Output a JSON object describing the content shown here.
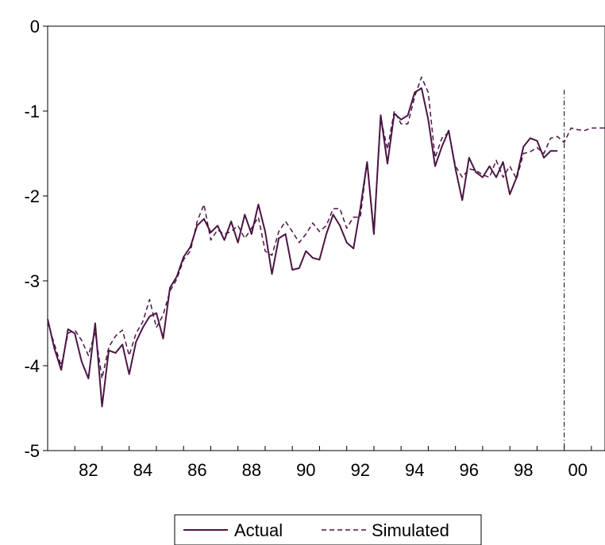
{
  "chart_data": {
    "type": "line",
    "title": "",
    "xlabel": "",
    "ylabel": "",
    "xlim": [
      1981.0,
      2001.5
    ],
    "ylim": [
      -5,
      0
    ],
    "x_ticks": [
      1982,
      1984,
      1986,
      1988,
      1990,
      1992,
      1994,
      1996,
      1998,
      2000
    ],
    "x_tick_labels": [
      "82",
      "84",
      "86",
      "88",
      "90",
      "92",
      "94",
      "96",
      "98",
      "00"
    ],
    "y_ticks": [
      0,
      -1,
      -2,
      -3,
      -4,
      -5
    ],
    "y_tick_labels": [
      "0",
      "-1",
      "-2",
      "-3",
      "-4",
      "-5"
    ],
    "grid": false,
    "legend_position": "bottom-center",
    "reference_line": {
      "x": 2000,
      "style": "dash-dot",
      "color": "#000000"
    },
    "x": [
      "1981Q1",
      "1981Q2",
      "1981Q3",
      "1981Q4",
      "1982Q1",
      "1982Q2",
      "1982Q3",
      "1982Q4",
      "1983Q1",
      "1983Q2",
      "1983Q3",
      "1983Q4",
      "1984Q1",
      "1984Q2",
      "1984Q3",
      "1984Q4",
      "1985Q1",
      "1985Q2",
      "1985Q3",
      "1985Q4",
      "1986Q1",
      "1986Q2",
      "1986Q3",
      "1986Q4",
      "1987Q1",
      "1987Q2",
      "1987Q3",
      "1987Q4",
      "1988Q1",
      "1988Q2",
      "1988Q3",
      "1988Q4",
      "1989Q1",
      "1989Q2",
      "1989Q3",
      "1989Q4",
      "1990Q1",
      "1990Q2",
      "1990Q3",
      "1990Q4",
      "1991Q1",
      "1991Q2",
      "1991Q3",
      "1991Q4",
      "1992Q1",
      "1992Q2",
      "1992Q3",
      "1992Q4",
      "1993Q1",
      "1993Q2",
      "1993Q3",
      "1993Q4",
      "1994Q1",
      "1994Q2",
      "1994Q3",
      "1994Q4",
      "1995Q1",
      "1995Q2",
      "1995Q3",
      "1995Q4",
      "1996Q1",
      "1996Q2",
      "1996Q3",
      "1996Q4",
      "1997Q1",
      "1997Q2",
      "1997Q3",
      "1997Q4",
      "1998Q1",
      "1998Q2",
      "1998Q3",
      "1998Q4",
      "1999Q1",
      "1999Q2",
      "1999Q3",
      "1999Q4",
      "2000Q1",
      "2000Q2",
      "2000Q3",
      "2000Q4",
      "2001Q1",
      "2001Q2",
      "2001Q3",
      "2001Q4"
    ],
    "series": [
      {
        "name": "Actual",
        "color": "#4b1545",
        "style": "solid",
        "values": [
          -3.45,
          -3.8,
          -4.05,
          -3.57,
          -3.62,
          -3.95,
          -4.15,
          -3.5,
          -4.48,
          -3.82,
          -3.85,
          -3.75,
          -4.1,
          -3.72,
          -3.55,
          -3.42,
          -3.38,
          -3.68,
          -3.08,
          -2.95,
          -2.72,
          -2.6,
          -2.35,
          -2.27,
          -2.43,
          -2.35,
          -2.52,
          -2.3,
          -2.55,
          -2.22,
          -2.45,
          -2.1,
          -2.42,
          -2.92,
          -2.5,
          -2.45,
          -2.87,
          -2.85,
          -2.65,
          -2.73,
          -2.75,
          -2.45,
          -2.22,
          -2.35,
          -2.55,
          -2.62,
          -2.15,
          -1.6,
          -2.45,
          -1.05,
          -1.62,
          -1.03,
          -1.1,
          -1.05,
          -0.78,
          -0.73,
          -1.1,
          -1.65,
          -1.42,
          -1.23,
          -1.68,
          -2.05,
          -1.55,
          -1.72,
          -1.78,
          -1.65,
          -1.78,
          -1.6,
          -1.98,
          -1.78,
          -1.42,
          -1.32,
          -1.35,
          -1.55,
          -1.47,
          -1.47,
          null,
          null,
          null,
          null,
          null,
          null,
          null,
          null
        ]
      },
      {
        "name": "Simulated",
        "color": "#4b1545",
        "style": "dashed",
        "values": [
          -3.48,
          -3.75,
          -4.0,
          -3.62,
          -3.58,
          -3.7,
          -3.88,
          -3.6,
          -4.15,
          -3.78,
          -3.65,
          -3.58,
          -3.88,
          -3.62,
          -3.48,
          -3.22,
          -3.55,
          -3.4,
          -3.12,
          -2.98,
          -2.75,
          -2.65,
          -2.3,
          -2.1,
          -2.52,
          -2.4,
          -2.45,
          -2.42,
          -2.35,
          -2.5,
          -2.38,
          -2.25,
          -2.65,
          -2.7,
          -2.42,
          -2.3,
          -2.42,
          -2.55,
          -2.45,
          -2.32,
          -2.42,
          -2.35,
          -2.15,
          -2.15,
          -2.38,
          -2.25,
          -2.25,
          -1.6,
          -2.4,
          -1.08,
          -1.45,
          -1.0,
          -1.15,
          -1.15,
          -0.83,
          -0.6,
          -0.78,
          -1.55,
          -1.32,
          -1.25,
          -1.65,
          -1.78,
          -1.68,
          -1.7,
          -1.75,
          -1.78,
          -1.58,
          -1.78,
          -1.65,
          -1.8,
          -1.5,
          -1.48,
          -1.43,
          -1.5,
          -1.32,
          -1.3,
          -1.37,
          -1.2,
          -1.22,
          -1.23,
          -1.2,
          -1.2,
          -1.2,
          -1.2
        ]
      }
    ]
  }
}
